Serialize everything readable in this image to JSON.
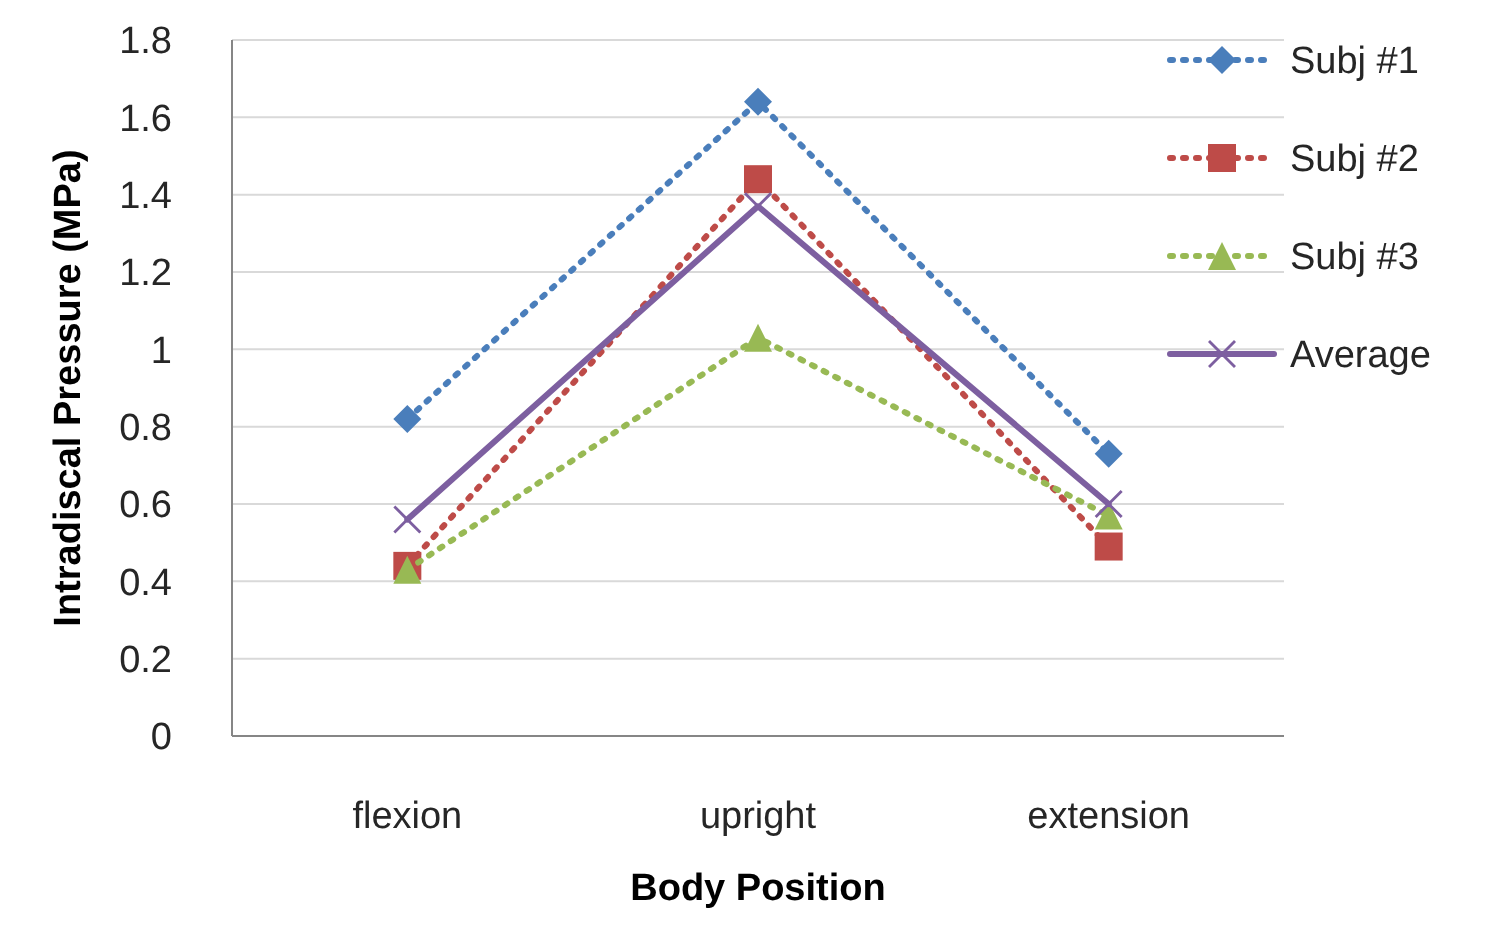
{
  "chart_data": {
    "type": "line",
    "xlabel": "Body Position",
    "ylabel": "Intradiscal Pressure (MPa)",
    "categories": [
      "flexion",
      "upright",
      "extension"
    ],
    "series": [
      {
        "name": "Subj #1",
        "color": "#4a7ebb",
        "values": [
          0.82,
          1.64,
          0.73
        ],
        "marker": "diamond",
        "line_style": "dotted"
      },
      {
        "name": "Subj #2",
        "color": "#be4b48",
        "values": [
          0.44,
          1.44,
          0.49
        ],
        "marker": "square",
        "line_style": "dotted"
      },
      {
        "name": "Subj #3",
        "color": "#98b954",
        "values": [
          0.43,
          1.03,
          0.57
        ],
        "marker": "triangle",
        "line_style": "dotted"
      },
      {
        "name": "Average",
        "color": "#7d5fa0",
        "values": [
          0.56,
          1.37,
          0.6
        ],
        "marker": "cross",
        "line_style": "solid"
      }
    ],
    "ylim": [
      0,
      1.8
    ],
    "yticks": [
      0,
      0.2,
      0.4,
      0.6,
      0.8,
      1,
      1.2,
      1.4,
      1.6,
      1.8
    ],
    "grid": "y",
    "legend": "right"
  }
}
